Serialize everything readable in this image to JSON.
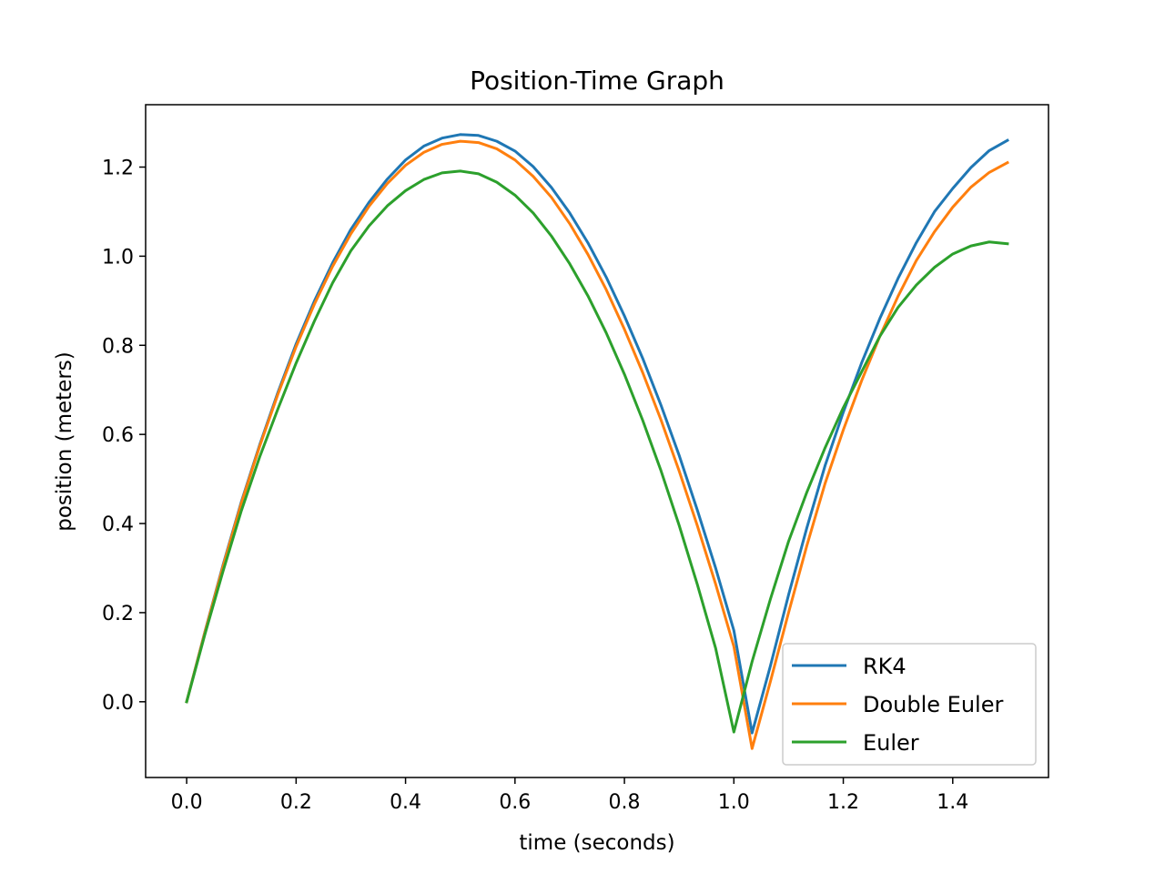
{
  "chart_data": {
    "type": "line",
    "title": "Position-Time Graph",
    "xlabel": "time (seconds)",
    "ylabel": "position (meters)",
    "xlim": [
      -0.075,
      1.575
    ],
    "ylim": [
      -0.17,
      1.34
    ],
    "xticks": [
      "0.0",
      "0.2",
      "0.4",
      "0.6",
      "0.8",
      "1.0",
      "1.2",
      "1.4"
    ],
    "xtick_values": [
      0.0,
      0.2,
      0.4,
      0.6,
      0.8,
      1.0,
      1.2,
      1.4
    ],
    "yticks": [
      "0.0",
      "0.2",
      "0.4",
      "0.6",
      "0.8",
      "1.0",
      "1.2"
    ],
    "ytick_values": [
      0.0,
      0.2,
      0.4,
      0.6,
      0.8,
      1.0,
      1.2
    ],
    "grid": false,
    "legend_position": "lower right",
    "x": [
      0.0,
      0.0333,
      0.0667,
      0.1,
      0.1333,
      0.1667,
      0.2,
      0.2333,
      0.2667,
      0.3,
      0.3333,
      0.3667,
      0.4,
      0.4333,
      0.4667,
      0.5,
      0.5333,
      0.5667,
      0.6,
      0.6333,
      0.6667,
      0.7,
      0.7333,
      0.7667,
      0.8,
      0.8333,
      0.8667,
      0.9,
      0.9333,
      0.9667,
      1.0,
      1.0333,
      1.0667,
      1.1,
      1.1333,
      1.1667,
      1.2,
      1.2333,
      1.2667,
      1.3,
      1.3333,
      1.3667,
      1.4,
      1.4333,
      1.4667,
      1.5
    ],
    "series": [
      {
        "name": "RK4",
        "color": "#1f77b4",
        "values": [
          0.0,
          0.157,
          0.308,
          0.449,
          0.576,
          0.694,
          0.803,
          0.899,
          0.985,
          1.06,
          1.121,
          1.173,
          1.216,
          1.247,
          1.265,
          1.273,
          1.271,
          1.258,
          1.236,
          1.201,
          1.154,
          1.097,
          1.03,
          0.953,
          0.866,
          0.771,
          0.666,
          0.553,
          0.43,
          0.3,
          0.16,
          -0.07,
          0.08,
          0.24,
          0.39,
          0.53,
          0.65,
          0.76,
          0.86,
          0.95,
          1.03,
          1.1,
          1.152,
          1.199,
          1.237,
          1.26
        ]
      },
      {
        "name": "Double Euler",
        "color": "#ff7f0e",
        "values": [
          0.0,
          0.156,
          0.305,
          0.446,
          0.573,
          0.69,
          0.797,
          0.892,
          0.977,
          1.05,
          1.112,
          1.163,
          1.204,
          1.233,
          1.251,
          1.258,
          1.255,
          1.241,
          1.216,
          1.179,
          1.132,
          1.073,
          1.004,
          0.925,
          0.836,
          0.739,
          0.633,
          0.518,
          0.395,
          0.264,
          0.124,
          -0.105,
          0.045,
          0.2,
          0.35,
          0.49,
          0.61,
          0.72,
          0.82,
          0.91,
          0.99,
          1.055,
          1.11,
          1.155,
          1.188,
          1.21
        ]
      },
      {
        "name": "Euler",
        "color": "#2ca02c",
        "values": [
          0.0,
          0.151,
          0.294,
          0.429,
          0.549,
          0.657,
          0.76,
          0.854,
          0.94,
          1.012,
          1.068,
          1.113,
          1.147,
          1.172,
          1.187,
          1.191,
          1.185,
          1.166,
          1.137,
          1.097,
          1.045,
          0.983,
          0.911,
          0.828,
          0.735,
          0.632,
          0.519,
          0.396,
          0.263,
          0.12,
          -0.068,
          0.09,
          0.23,
          0.36,
          0.47,
          0.57,
          0.66,
          0.74,
          0.82,
          0.885,
          0.935,
          0.975,
          1.005,
          1.023,
          1.032,
          1.028
        ]
      }
    ]
  }
}
